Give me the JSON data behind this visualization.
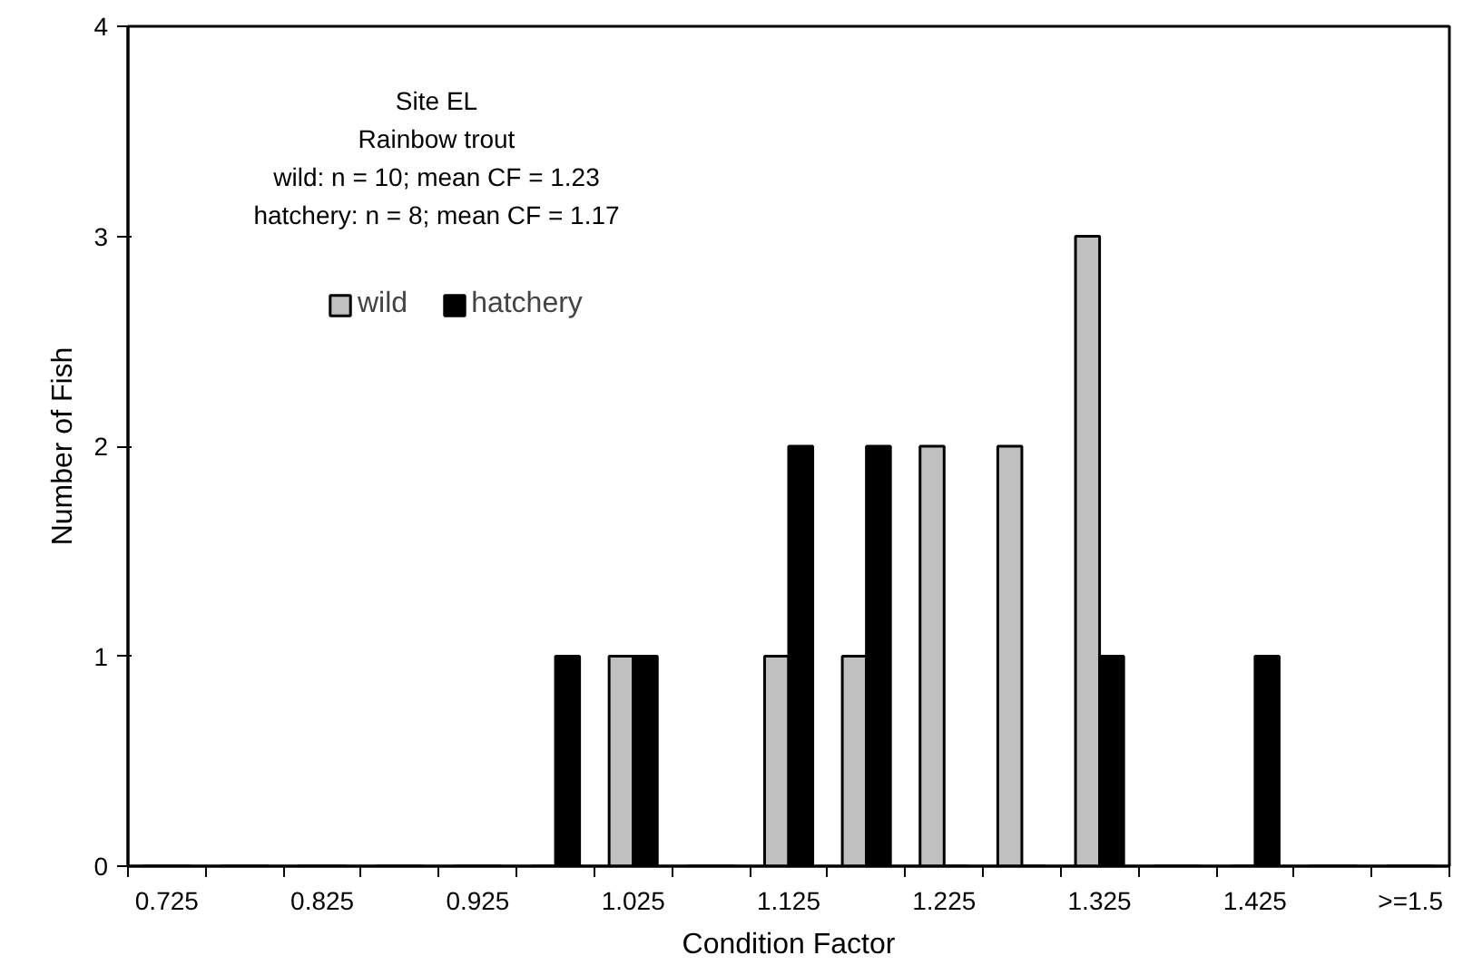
{
  "chart_data": {
    "type": "bar",
    "xlabel": "Condition Factor",
    "ylabel": "Number of Fish",
    "categories": [
      "0.725",
      null,
      "0.825",
      null,
      "0.925",
      null,
      "1.025",
      null,
      "1.125",
      null,
      "1.225",
      null,
      "1.325",
      null,
      "1.425",
      null,
      ">=1.5"
    ],
    "series": [
      {
        "name": "wild",
        "color": "#c0c0c0",
        "values": [
          0,
          0,
          0,
          0,
          0,
          0,
          1,
          0,
          1,
          1,
          2,
          2,
          3,
          0,
          0,
          0,
          0
        ]
      },
      {
        "name": "hatchery",
        "color": "#000000",
        "values": [
          0,
          0,
          0,
          0,
          0,
          1,
          1,
          0,
          2,
          2,
          0,
          0,
          1,
          0,
          1,
          0,
          0
        ]
      }
    ],
    "ylim": [
      0,
      4
    ],
    "yticks": [
      0,
      1,
      2,
      3,
      4
    ],
    "grid": false,
    "legend": "top left",
    "annotations": [
      "Site EL",
      "Rainbow trout",
      "wild: n = 10; mean CF = 1.23",
      "hatchery: n = 8; mean CF = 1.17"
    ]
  }
}
